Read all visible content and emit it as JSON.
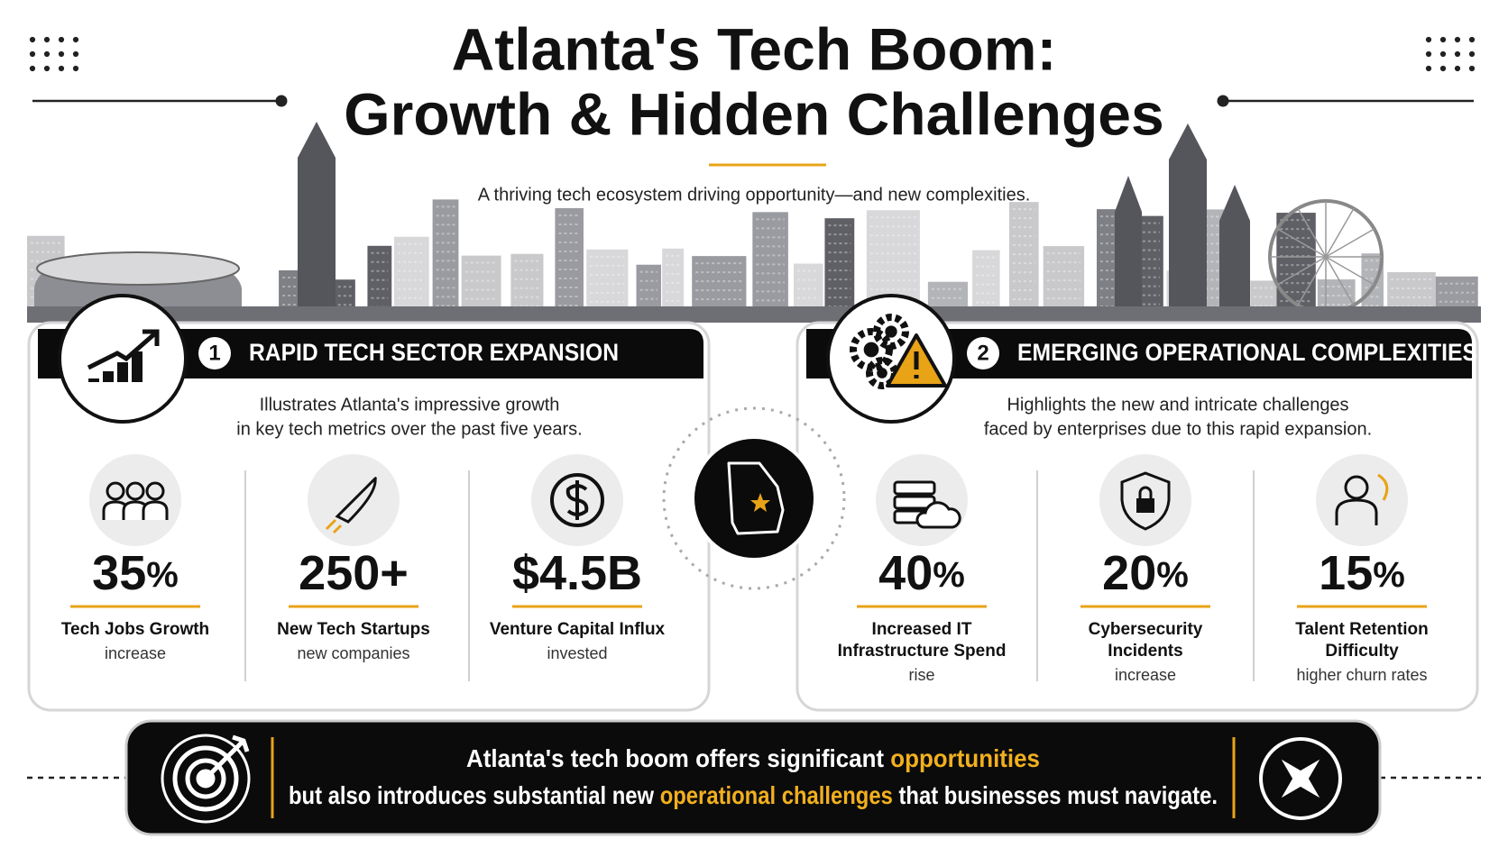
{
  "header": {
    "title": [
      "Atlanta's Tech Boom:",
      "Growth & Hidden Challenges"
    ],
    "subtitle": "A thriving tech ecosystem driving opportunity—and new complexities."
  },
  "panels": [
    {
      "number": "1",
      "heading": "RAPID TECH SECTOR EXPANSION",
      "description": [
        "Illustrates Atlanta's impressive growth",
        "in key tech metrics over the past five years."
      ],
      "stats": [
        {
          "value": "35",
          "unit": "%",
          "label": [
            "Tech Jobs Growth"
          ],
          "sublabel": "increase"
        },
        {
          "value": "250+",
          "label": [
            "New Tech Startups"
          ],
          "sublabel": "new companies"
        },
        {
          "value": "$4.5B",
          "label": [
            "Venture Capital Influx"
          ],
          "sublabel": "invested"
        }
      ]
    },
    {
      "number": "2",
      "heading": "EMERGING OPERATIONAL COMPLEXITIES",
      "description": [
        "Highlights the new and intricate challenges",
        "faced by enterprises due to this rapid expansion."
      ],
      "stats": [
        {
          "value": "40",
          "unit": "%",
          "label": [
            "Increased IT",
            "Infrastructure Spend"
          ],
          "sublabel": "rise"
        },
        {
          "value": "20",
          "unit": "%",
          "label": [
            "Cybersecurity",
            "Incidents"
          ],
          "sublabel": "increase"
        },
        {
          "value": "15",
          "unit": "%",
          "label": [
            "Talent Retention",
            "Difficulty"
          ],
          "sublabel": "higher churn rates"
        }
      ]
    }
  ],
  "footer": {
    "lines": [
      [
        {
          "text": "Atlanta's tech boom offers significant "
        },
        {
          "text": "opportunities",
          "highlight": true
        }
      ],
      [
        {
          "text": "but also introduces substantial new "
        },
        {
          "text": "operational challenges",
          "highlight": true
        },
        {
          "text": " that businesses must navigate."
        }
      ]
    ]
  }
}
